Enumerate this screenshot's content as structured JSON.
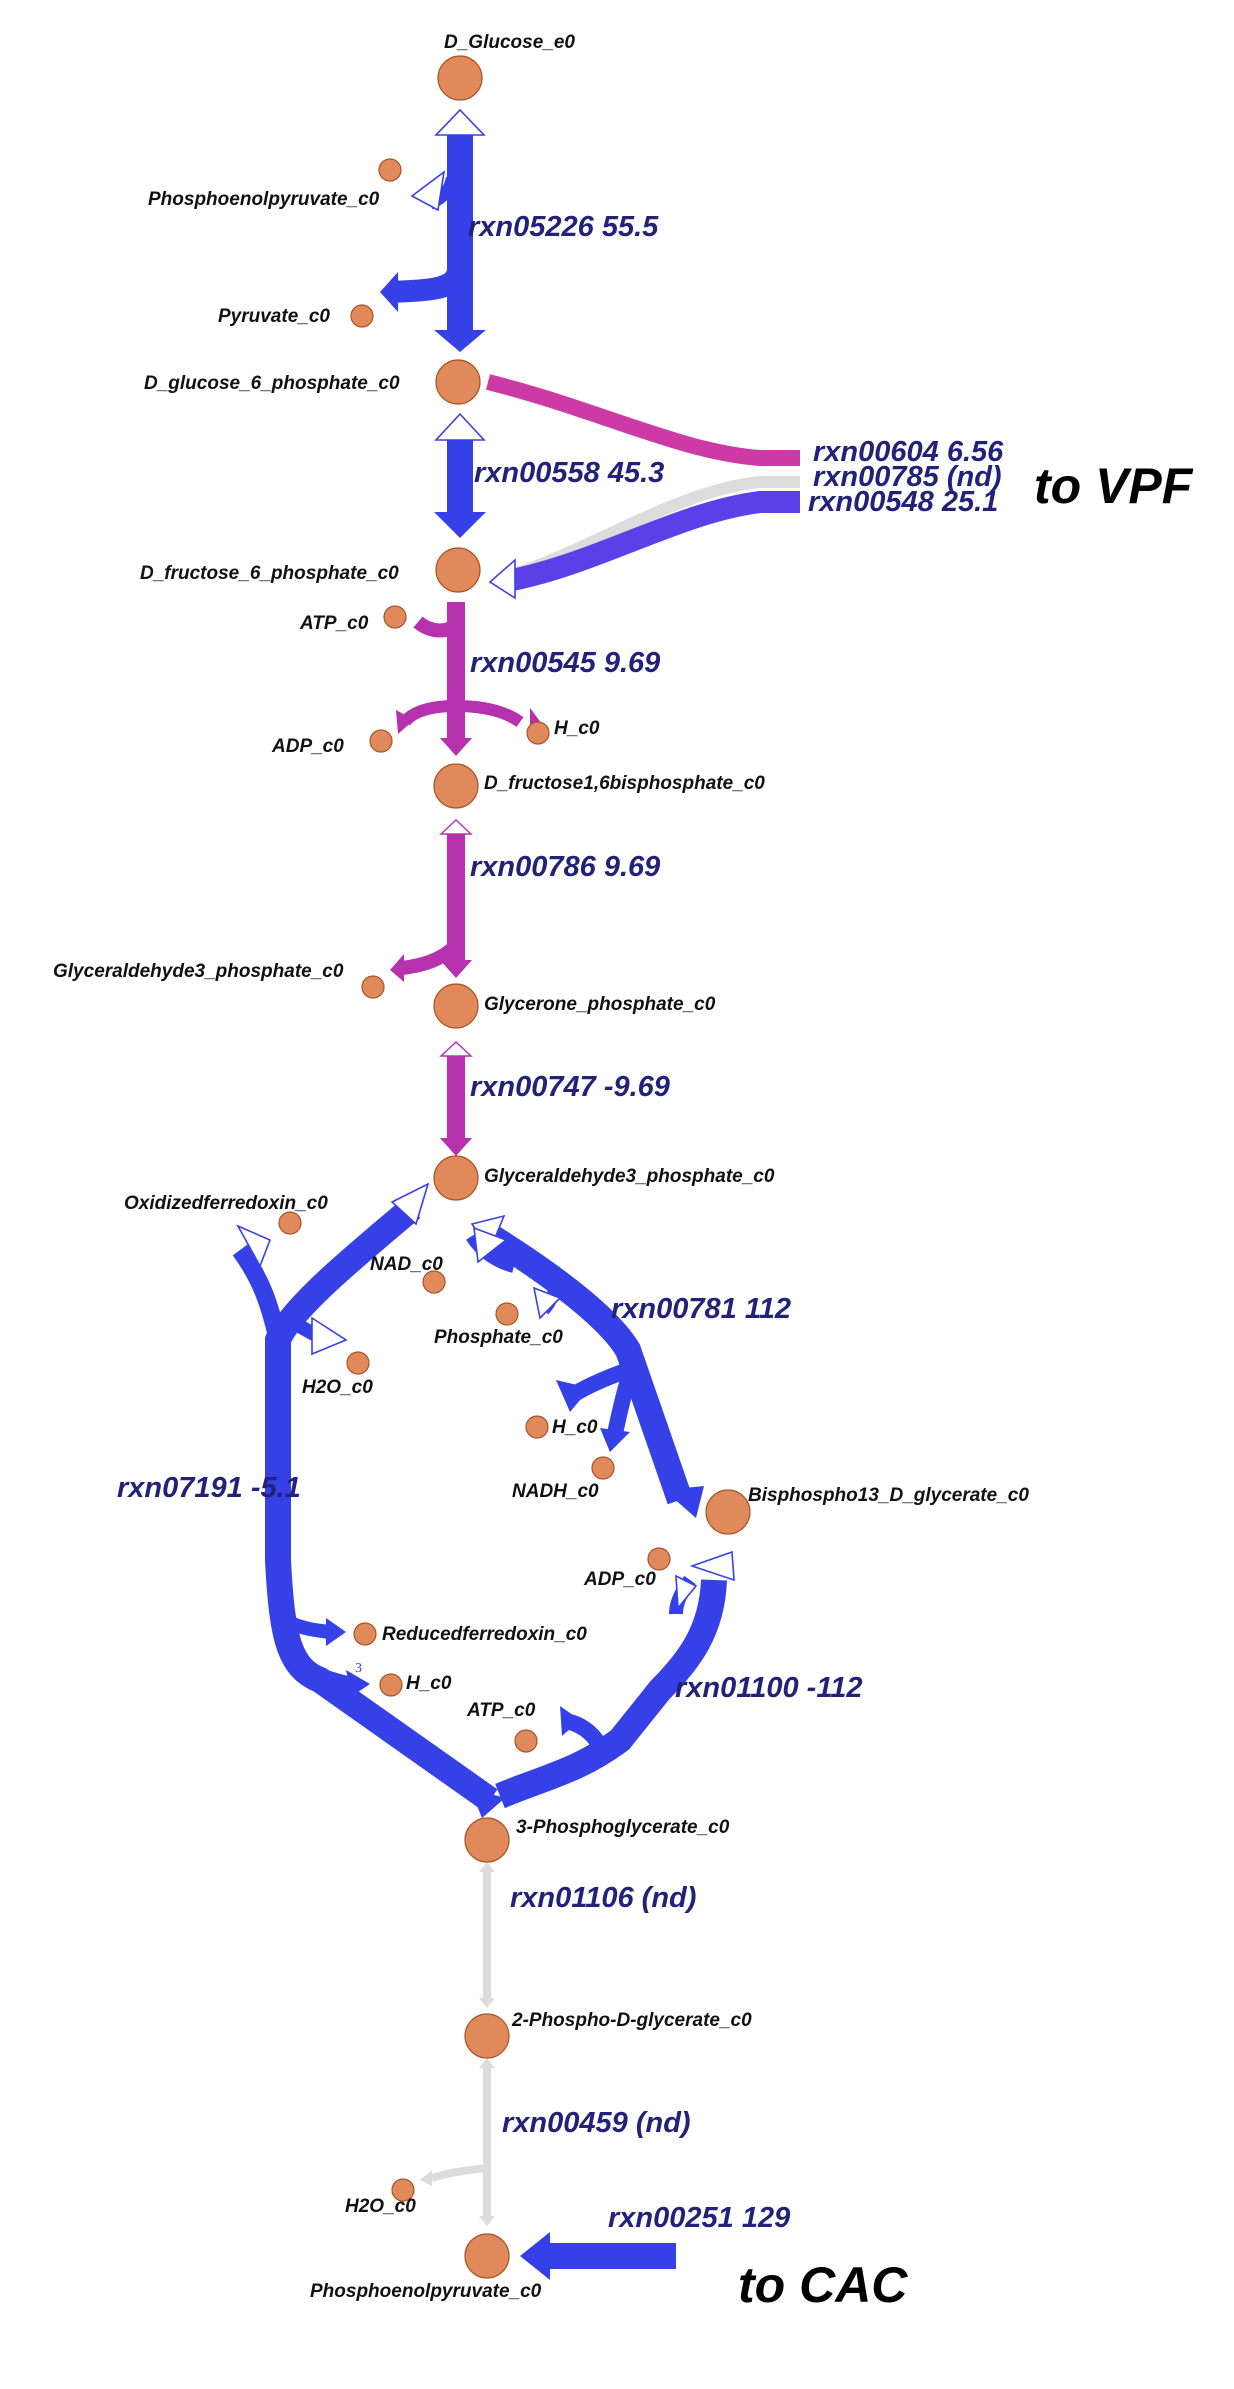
{
  "colors": {
    "node": "#e0895a",
    "blue": "#3540e6",
    "magenta": "#cc3aa6",
    "purple": "#b631ae",
    "gray": "#dcdcdc",
    "rxn_label": "#22227a"
  },
  "metabolites": {
    "d_glucose_e0": "D_Glucose_e0",
    "pep_top": "Phosphoenolpyruvate_c0",
    "pyruvate": "Pyruvate_c0",
    "g6p": "D_glucose_6_phosphate_c0",
    "f6p": "D_fructose_6_phosphate_c0",
    "atp_1": "ATP_c0",
    "adp_1": "ADP_c0",
    "h_1": "H_c0",
    "fbp": "D_fructose1,6bisphosphate_c0",
    "gap_side": "Glyceraldehyde3_phosphate_c0",
    "dhap": "Glycerone_phosphate_c0",
    "gap": "Glyceraldehyde3_phosphate_c0",
    "oxfd": "Oxidizedferredoxin_c0",
    "nad": "NAD_c0",
    "phosphate": "Phosphate_c0",
    "h2o_1": "H2O_c0",
    "h_2": "H_c0",
    "nadh": "NADH_c0",
    "bpg": "Bisphospho13_D_glycerate_c0",
    "adp_2": "ADP_c0",
    "redfd": "Reducedferredoxin_c0",
    "h_3": "H_c0",
    "atp_2": "ATP_c0",
    "pg3": "3-Phosphoglycerate_c0",
    "pg2": "2-Phospho-D-glycerate_c0",
    "h2o_2": "H2O_c0",
    "pep_bottom": "Phosphoenolpyruvate_c0"
  },
  "reactions": {
    "rxn05226": "rxn05226 55.5",
    "rxn00604": "rxn00604 6.56",
    "rxn00785": "rxn00785 (nd)",
    "rxn00548": "rxn00548 25.1",
    "rxn00558": "rxn00558 45.3",
    "rxn00545": "rxn00545 9.69",
    "rxn00786": "rxn00786 9.69",
    "rxn00747": "rxn00747 -9.69",
    "rxn00781": "rxn00781 112",
    "rxn07191": "rxn07191 -5.1",
    "rxn01100": "rxn01100 -112",
    "rxn01106": "rxn01106 (nd)",
    "rxn00459": "rxn00459 (nd)",
    "rxn00251": "rxn00251 129"
  },
  "destinations": {
    "vpf": "to VPF",
    "cac": "to CAC"
  },
  "small_mark": "3"
}
